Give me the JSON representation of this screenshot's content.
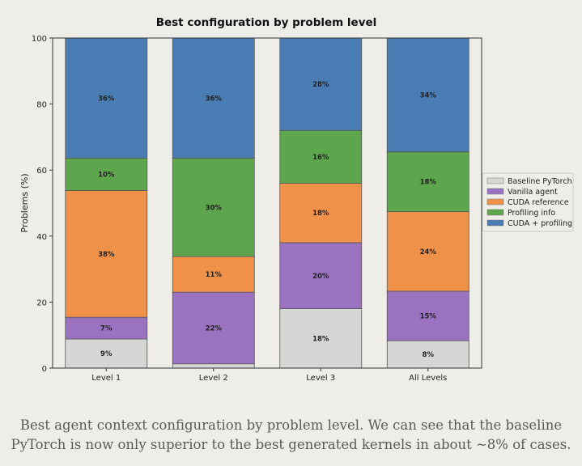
{
  "chart_data": {
    "type": "bar",
    "stacked": true,
    "title": "Best configuration by problem level",
    "xlabel": "",
    "ylabel": "Problems (%)",
    "ylim": [
      0,
      100
    ],
    "yticks": [
      0,
      20,
      40,
      60,
      80,
      100
    ],
    "categories": [
      "Level 1",
      "Level 2",
      "Level 3",
      "All Levels"
    ],
    "legend_position": "right",
    "series": [
      {
        "name": "Baseline PyTorch",
        "color": "#d6d6d4",
        "values": [
          8.8,
          1.3,
          18,
          8.3
        ],
        "labels": [
          "9%",
          "",
          "18%",
          "8%"
        ]
      },
      {
        "name": "Vanilla agent",
        "color": "#9a72bf",
        "values": [
          6.6,
          21.7,
          20,
          15
        ],
        "labels": [
          "7%",
          "22%",
          "20%",
          "15%"
        ]
      },
      {
        "name": "CUDA reference",
        "color": "#f0914a",
        "values": [
          38.4,
          10.8,
          18,
          24.1
        ],
        "labels": [
          "38%",
          "11%",
          "18%",
          "24%"
        ]
      },
      {
        "name": "Profiling info",
        "color": "#5da64e",
        "values": [
          9.8,
          29.8,
          16,
          18.1
        ],
        "labels": [
          "10%",
          "30%",
          "16%",
          "18%"
        ]
      },
      {
        "name": "CUDA + profiling",
        "color": "#4a7db4",
        "values": [
          36.4,
          36.4,
          28,
          34.5
        ],
        "labels": [
          "36%",
          "36%",
          "28%",
          "34%"
        ]
      }
    ]
  },
  "caption": {
    "line1": "Best agent context configuration by problem level. We can see that the baseline",
    "line2": "PyTorch is now only superior to the best generated kernels in about ~8% of cases."
  }
}
